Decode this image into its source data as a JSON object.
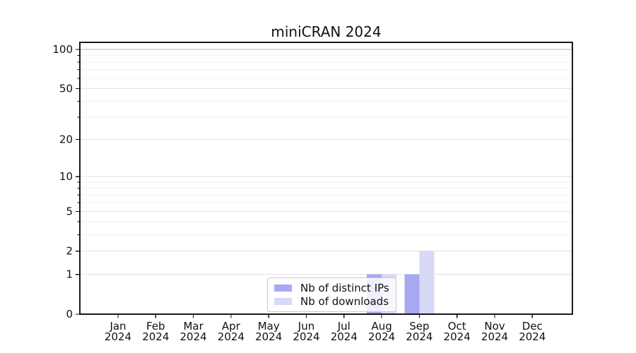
{
  "chart_data": {
    "type": "bar",
    "title": "miniCRAN 2024",
    "year": "2024",
    "categories": [
      "Jan",
      "Feb",
      "Mar",
      "Apr",
      "May",
      "Jun",
      "Jul",
      "Aug",
      "Sep",
      "Oct",
      "Nov",
      "Dec"
    ],
    "series": [
      {
        "name": "Nb of distinct IPs",
        "color": "#a8a8f0",
        "values": [
          0,
          0,
          0,
          0,
          0,
          0,
          0,
          1,
          1,
          0,
          0,
          0
        ]
      },
      {
        "name": "Nb of downloads",
        "color": "#d8d8f7",
        "values": [
          0,
          0,
          0,
          0,
          0,
          0,
          0,
          1,
          2,
          0,
          0,
          0
        ]
      }
    ],
    "y_axis": {
      "scale": "log1p",
      "ticks": [
        0,
        1,
        2,
        5,
        10,
        20,
        50,
        100
      ],
      "minor_ticks": [
        3,
        4,
        6,
        7,
        8,
        9,
        30,
        40,
        60,
        70,
        80,
        90
      ],
      "range": [
        0,
        113
      ]
    },
    "legend": {
      "position": "lower center",
      "frame": true
    },
    "grid": true
  },
  "colors": {
    "grid_major": "#e2e2e2",
    "grid_minor": "#f1f1f1",
    "grid_top": "#b2b2b2",
    "text": "#111111",
    "spine": "#000000",
    "background": "#ffffff"
  }
}
